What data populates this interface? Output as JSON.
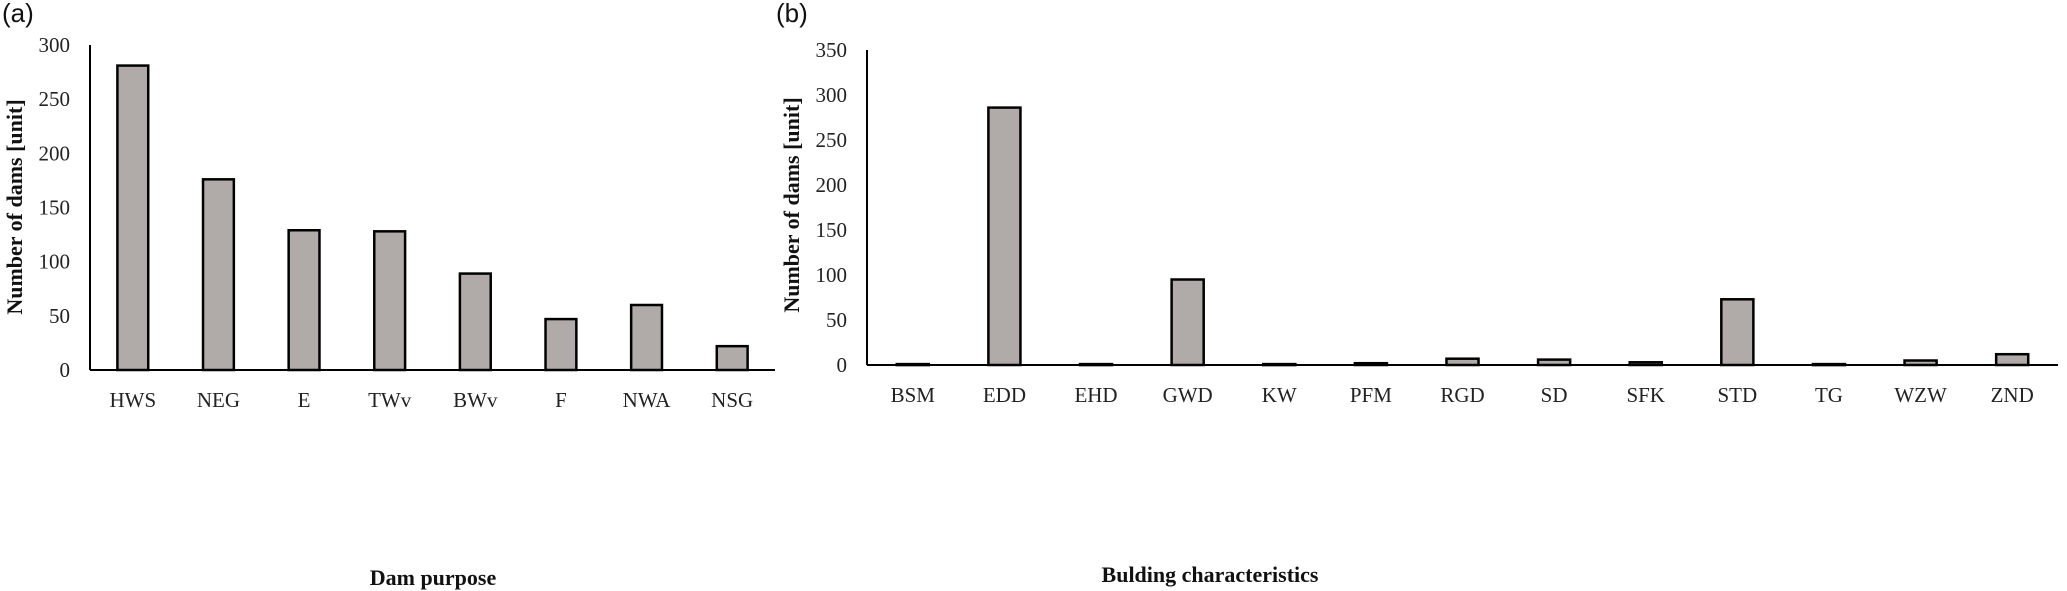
{
  "chart_data": [
    {
      "type": "bar",
      "panel_label": "(a)",
      "categories": [
        "HWS",
        "NEG",
        "E",
        "TWv",
        "BWv",
        "F",
        "NWA",
        "NSG"
      ],
      "values": [
        281,
        176,
        129,
        128,
        89,
        47,
        60,
        22
      ],
      "title": "",
      "xlabel": "Dam purpose",
      "ylabel": "Number of dams [unit]",
      "ylim": [
        0,
        300
      ],
      "yticks": [
        0,
        50,
        100,
        150,
        200,
        250,
        300
      ],
      "bar_color": "#b0aaa8",
      "grid": false,
      "legend": "none"
    },
    {
      "type": "bar",
      "panel_label": "(b)",
      "categories": [
        "BSM",
        "EDD",
        "EHD",
        "GWD",
        "KW",
        "PFM",
        "RGD",
        "SD",
        "SFK",
        "STD",
        "TG",
        "WZW",
        "ZND"
      ],
      "values": [
        1,
        286,
        1,
        95,
        1,
        2,
        7,
        6,
        3,
        73,
        1,
        5,
        12
      ],
      "title": "",
      "xlabel": "Bulding characteristics",
      "ylabel": "Number of dams [unit]",
      "ylim": [
        0,
        350
      ],
      "yticks": [
        0,
        50,
        100,
        150,
        200,
        250,
        300,
        350
      ],
      "bar_color": "#b0aaa8",
      "grid": false,
      "legend": "none"
    }
  ]
}
